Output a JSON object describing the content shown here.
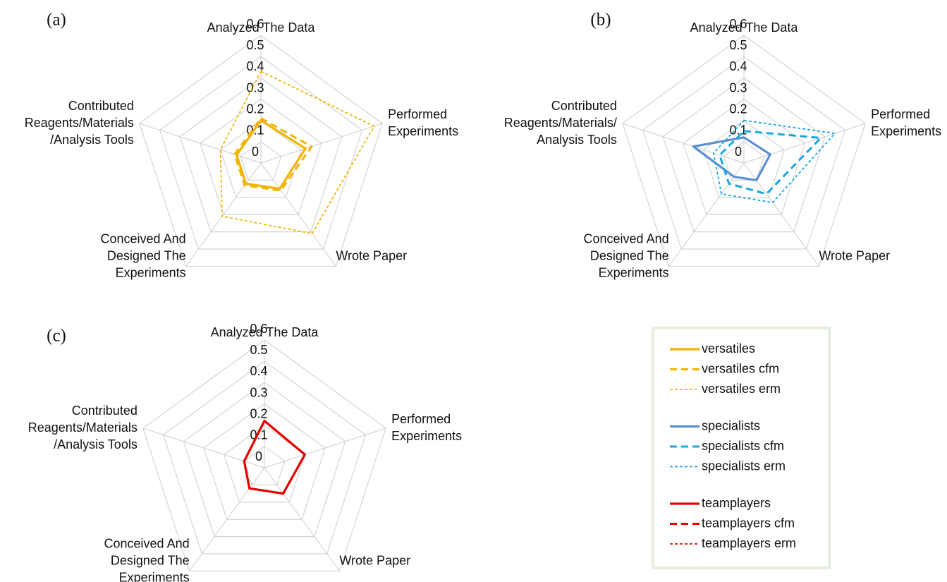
{
  "chart_data": [
    {
      "type": "radar",
      "label": "(a)",
      "categories": [
        [
          "Analyzed The Data"
        ],
        [
          "Performed",
          "Experiments"
        ],
        [
          "Wrote Paper"
        ],
        [
          "Conceived And",
          "Designed The",
          "Experiments"
        ],
        [
          "Contributed",
          "Reagents/Materials",
          "/Analysis Tools"
        ]
      ],
      "ylim": [
        0,
        0.6
      ],
      "yticks": [
        0,
        0.1,
        0.2,
        0.3,
        0.4,
        0.5,
        0.6
      ],
      "grid": true,
      "series": [
        {
          "name": "versatiles",
          "color": "#f2b400",
          "line_style": "solid",
          "values": [
            0.2,
            0.22,
            0.15,
            0.12,
            0.12
          ]
        },
        {
          "name": "versatiles cfm",
          "color": "#f2b400",
          "line_style": "dashed",
          "values": [
            0.21,
            0.25,
            0.16,
            0.13,
            0.13
          ]
        },
        {
          "name": "versatiles erm",
          "color": "#f2b400",
          "line_style": "dotted",
          "values": [
            0.43,
            0.56,
            0.41,
            0.31,
            0.2
          ]
        }
      ]
    },
    {
      "type": "radar",
      "label": "(b)",
      "categories": [
        [
          "Analyzed The Data"
        ],
        [
          "Performed",
          "Experiments"
        ],
        [
          "Wrote Paper"
        ],
        [
          "Conceived And",
          "Designed The",
          "Experiments"
        ],
        [
          "Contributed",
          "Reagents/Materials/",
          "Analysis Tools"
        ]
      ],
      "ylim": [
        0,
        0.6
      ],
      "yticks": [
        0,
        0.1,
        0.2,
        0.3,
        0.4,
        0.5,
        0.6
      ],
      "grid": true,
      "series": [
        {
          "name": "specialists",
          "color": "#5b8fd0",
          "line_style": "solid",
          "values": [
            0.12,
            0.13,
            0.1,
            0.08,
            0.25
          ]
        },
        {
          "name": "specialists cfm",
          "color": "#1aa7e0",
          "line_style": "dashed",
          "values": [
            0.15,
            0.38,
            0.18,
            0.12,
            0.12
          ]
        },
        {
          "name": "specialists erm",
          "color": "#1aa7e0",
          "line_style": "dotted",
          "values": [
            0.2,
            0.45,
            0.23,
            0.18,
            0.15
          ]
        }
      ]
    },
    {
      "type": "radar",
      "label": "(c)",
      "categories": [
        [
          "Analyzed The Data"
        ],
        [
          "Performed",
          "Experiments"
        ],
        [
          "Wrote Paper"
        ],
        [
          "Conceived And",
          "Designed The",
          "Experiments"
        ],
        [
          "Contributed",
          "Reagents/Materials",
          "/Analysis Tools"
        ]
      ],
      "ylim": [
        0,
        0.6
      ],
      "yticks": [
        0,
        0.1,
        0.2,
        0.3,
        0.4,
        0.5,
        0.6
      ],
      "grid": true,
      "series": [
        {
          "name": "teamplayers",
          "color": "#e60000",
          "line_style": "solid",
          "values": [
            0.22,
            0.2,
            0.15,
            0.12,
            0.1
          ]
        },
        {
          "name": "teamplayers cfm",
          "color": "#e60000",
          "line_style": "dashed",
          "values": [
            0.22,
            0.2,
            0.15,
            0.12,
            0.1
          ]
        },
        {
          "name": "teamplayers erm",
          "color": "#e60000",
          "line_style": "dotted",
          "values": [
            0.22,
            0.2,
            0.15,
            0.12,
            0.1
          ]
        }
      ]
    }
  ]
}
